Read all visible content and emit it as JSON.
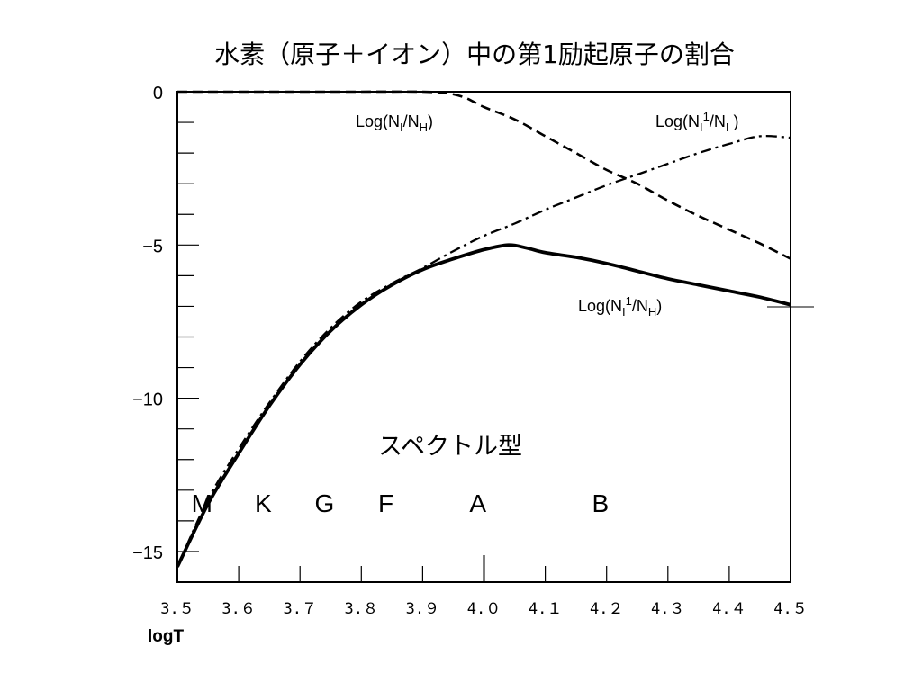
{
  "chart_data": {
    "type": "line",
    "title": "水素（原子＋イオン）中の第1励起原子の割合",
    "xlabel": "logT",
    "ylabel": "",
    "xlim": [
      3.5,
      4.5
    ],
    "ylim": [
      -16,
      0
    ],
    "x_ticks": [
      3.5,
      3.6,
      3.7,
      3.8,
      3.9,
      4.0,
      4.1,
      4.2,
      4.3,
      4.4,
      4.5
    ],
    "x_tick_labels": [
      "3.５",
      "3.６",
      "3.７",
      "3.８",
      "3.９",
      "4.０",
      "4.１",
      "4.２",
      "4.３",
      "4.４",
      "4.５"
    ],
    "y_ticks": [
      0,
      -5,
      -10,
      -15
    ],
    "y_tick_labels": [
      "0",
      "−5",
      "−10",
      "−15"
    ],
    "grid": false,
    "series": [
      {
        "name": "Log(NI/NH)",
        "style": "dashed",
        "points": [
          [
            3.5,
            0
          ],
          [
            3.6,
            0
          ],
          [
            3.7,
            0
          ],
          [
            3.8,
            0
          ],
          [
            3.9,
            0
          ],
          [
            3.94,
            -0.05
          ],
          [
            3.97,
            -0.2
          ],
          [
            4.0,
            -0.5
          ],
          [
            4.05,
            -0.9
          ],
          [
            4.1,
            -1.45
          ],
          [
            4.15,
            -2.0
          ],
          [
            4.2,
            -2.55
          ],
          [
            4.25,
            -3.0
          ],
          [
            4.3,
            -3.55
          ],
          [
            4.35,
            -4.05
          ],
          [
            4.4,
            -4.5
          ],
          [
            4.45,
            -4.95
          ],
          [
            4.5,
            -5.45
          ]
        ]
      },
      {
        "name": "Log(NI1/NI)",
        "style": "dashdot",
        "points": [
          [
            3.5,
            -15.5
          ],
          [
            3.55,
            -13.3
          ],
          [
            3.6,
            -11.65
          ],
          [
            3.65,
            -10.15
          ],
          [
            3.7,
            -8.8
          ],
          [
            3.75,
            -7.7
          ],
          [
            3.8,
            -6.85
          ],
          [
            3.85,
            -6.25
          ],
          [
            3.9,
            -5.75
          ],
          [
            3.95,
            -5.2
          ],
          [
            4.0,
            -4.7
          ],
          [
            4.05,
            -4.3
          ],
          [
            4.1,
            -3.85
          ],
          [
            4.15,
            -3.45
          ],
          [
            4.2,
            -3.05
          ],
          [
            4.25,
            -2.7
          ],
          [
            4.3,
            -2.35
          ],
          [
            4.35,
            -2.0
          ],
          [
            4.4,
            -1.7
          ],
          [
            4.45,
            -1.45
          ],
          [
            4.5,
            -1.5
          ]
        ]
      },
      {
        "name": "Log(NI1/NH)",
        "style": "solid",
        "points": [
          [
            3.5,
            -15.5
          ],
          [
            3.55,
            -13.45
          ],
          [
            3.6,
            -11.8
          ],
          [
            3.65,
            -10.25
          ],
          [
            3.7,
            -8.9
          ],
          [
            3.75,
            -7.8
          ],
          [
            3.8,
            -6.95
          ],
          [
            3.85,
            -6.3
          ],
          [
            3.9,
            -5.8
          ],
          [
            3.95,
            -5.45
          ],
          [
            4.0,
            -5.15
          ],
          [
            4.04,
            -5.0
          ],
          [
            4.07,
            -5.1
          ],
          [
            4.1,
            -5.25
          ],
          [
            4.15,
            -5.4
          ],
          [
            4.2,
            -5.6
          ],
          [
            4.25,
            -5.85
          ],
          [
            4.3,
            -6.1
          ],
          [
            4.35,
            -6.3
          ],
          [
            4.4,
            -6.5
          ],
          [
            4.45,
            -6.7
          ],
          [
            4.5,
            -6.95
          ]
        ]
      }
    ],
    "curve_labels": [
      {
        "series": "Log(NI/NH)",
        "main": "Log(N",
        "sub1": "I",
        "mid": "/N",
        "sub2": "H",
        "sup": "",
        "close": ")"
      },
      {
        "series": "Log(NI1/NI)",
        "main": "Log(N",
        "sub1": "I",
        "sup": "1",
        "mid": "/N",
        "sub2": "I",
        "close": " )"
      },
      {
        "series": "Log(NI1/NH)",
        "main": "Log(N",
        "sub1": "I",
        "sup": "1",
        "mid": "/N",
        "sub2": "H",
        "close": ")"
      }
    ],
    "annotations": {
      "spectral_type_label": "スペクトル型",
      "spectral_types": [
        {
          "label": "M",
          "x": 3.54
        },
        {
          "label": "K",
          "x": 3.64
        },
        {
          "label": "G",
          "x": 3.74
        },
        {
          "label": "F",
          "x": 3.84
        },
        {
          "label": "A",
          "x": 3.99
        },
        {
          "label": "B",
          "x": 4.19
        }
      ]
    }
  }
}
